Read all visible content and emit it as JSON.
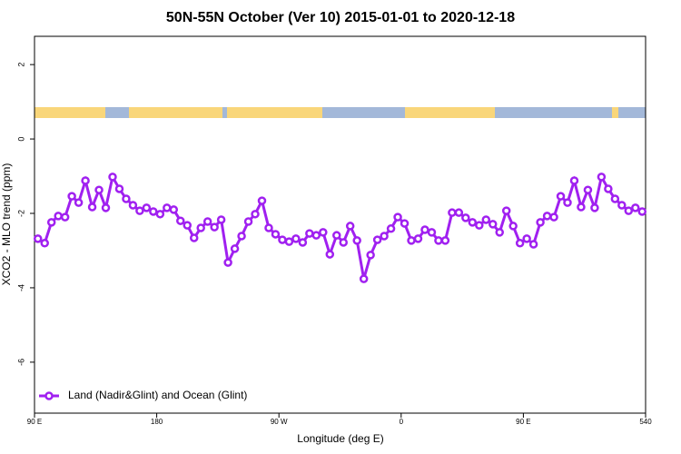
{
  "chart_data": {
    "type": "line",
    "title": "50N-55N October (Ver 10)   2015-01-01 to 2020-12-18",
    "x_label": "Longitude (deg E)",
    "y_label": "XCO2 - MLO trend (ppm)",
    "x": [
      92.5,
      97.5,
      102.5,
      107.5,
      112.5,
      117.5,
      122.5,
      127.5,
      132.5,
      137.5,
      142.5,
      147.5,
      152.5,
      157.5,
      162.5,
      167.5,
      172.5,
      177.5,
      182.5,
      187.5,
      192.5,
      197.5,
      202.5,
      207.5,
      212.5,
      217.5,
      222.5,
      227.5,
      232.5,
      237.5,
      242.5,
      247.5,
      252.5,
      257.5,
      262.5,
      267.5,
      272.5,
      277.5,
      282.5,
      287.5,
      292.5,
      297.5,
      302.5,
      307.5,
      312.5,
      317.5,
      322.5,
      327.5,
      332.5,
      337.5,
      342.5,
      347.5,
      352.5,
      357.5,
      362.5,
      367.5,
      372.5,
      377.5,
      382.5,
      387.5,
      392.5,
      397.5,
      402.5,
      407.5,
      412.5,
      417.5,
      422.5,
      427.5,
      432.5,
      437.5,
      442.5,
      447.5,
      452.5,
      457.5,
      462.5,
      467.5,
      472.5,
      477.5,
      482.5,
      487.5,
      492.5,
      497.5,
      502.5,
      507.5,
      512.5,
      517.5,
      522.5,
      527.5,
      532.5,
      537.5
    ],
    "series": [
      {
        "name": "Land (Nadir&Glint) and Ocean (Glint)",
        "color": "#a020f0",
        "values": [
          -2.68,
          -2.8,
          -2.24,
          -2.07,
          -2.1,
          -1.54,
          -1.71,
          -1.12,
          -1.83,
          -1.37,
          -1.85,
          -1.02,
          -1.34,
          -1.61,
          -1.78,
          -1.93,
          -1.85,
          -1.95,
          -2.02,
          -1.85,
          -1.9,
          -2.2,
          -2.32,
          -2.66,
          -2.39,
          -2.22,
          -2.37,
          -2.17,
          -3.32,
          -2.95,
          -2.61,
          -2.22,
          -2.02,
          -1.66,
          -2.39,
          -2.56,
          -2.71,
          -2.76,
          -2.68,
          -2.78,
          -2.54,
          -2.59,
          -2.51,
          -3.1,
          -2.59,
          -2.78,
          -2.34,
          -2.73,
          -3.76,
          -3.12,
          -2.71,
          -2.61,
          -2.41,
          -2.1,
          -2.27,
          -2.73,
          -2.68,
          -2.44,
          -2.51,
          -2.73,
          -2.73,
          -1.98,
          -1.98,
          -2.12,
          -2.24,
          -2.32,
          -2.17,
          -2.29,
          -2.51,
          -1.93,
          -2.34,
          -2.8,
          -2.68,
          -2.83,
          -2.24,
          -2.07,
          -2.1,
          -1.54,
          -1.71,
          -1.12,
          -1.83,
          -1.37,
          -1.85,
          -1.02,
          -1.34,
          -1.61,
          -1.78,
          -1.93,
          -1.85,
          -1.95
        ]
      }
    ],
    "xlim": [
      90,
      540
    ],
    "xticks": [
      {
        "value": 90,
        "label": "90 E"
      },
      180,
      {
        "value": 270,
        "label": "90 W"
      },
      {
        "value": 360,
        "label": "0"
      },
      {
        "value": 450,
        "label": "90 E"
      },
      540
    ],
    "ylim": [
      -7.37,
      2.76
    ],
    "yticks": [
      2,
      0,
      -2,
      -4,
      -6
    ],
    "legend": "bottomleft"
  }
}
